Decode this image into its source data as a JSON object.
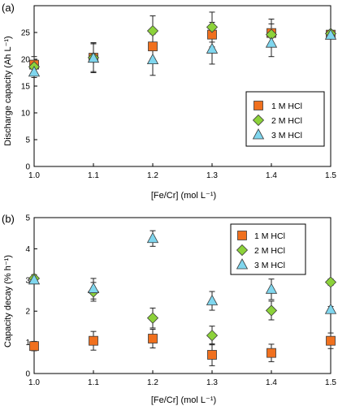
{
  "chart_data": [
    {
      "type": "scatter",
      "panel_label": "(a)",
      "xlabel": "[Fe/Cr] (mol L⁻¹)",
      "ylabel": "Discharge capacity (Ah L⁻¹)",
      "xlim": [
        1.0,
        1.5
      ],
      "ylim": [
        0,
        30
      ],
      "x_ticks": [
        "1.0",
        "1.1",
        "1.2",
        "1.3",
        "1.4",
        "1.5"
      ],
      "y_ticks": [
        "0",
        "5",
        "10",
        "15",
        "20",
        "25"
      ],
      "grid": false,
      "legend_position": "center-right",
      "series": [
        {
          "name": "1 M HCl",
          "marker": "square",
          "color": "#f0701e",
          "x": [
            1.0,
            1.1,
            1.2,
            1.3,
            1.4,
            1.5
          ],
          "y": [
            19.0,
            20.3,
            22.4,
            24.6,
            24.9,
            24.6
          ],
          "err": [
            1.5,
            2.8,
            2.3,
            2.3,
            2.6,
            0.6
          ]
        },
        {
          "name": "2 M HCl",
          "marker": "diamond",
          "color": "#8cd23a",
          "x": [
            1.0,
            1.1,
            1.2,
            1.3,
            1.4,
            1.5
          ],
          "y": [
            18.6,
            20.3,
            25.3,
            26.0,
            24.6,
            24.8
          ],
          "err": [
            1.2,
            2.6,
            2.8,
            2.8,
            2.0,
            0.5
          ]
        },
        {
          "name": "3 M HCl",
          "marker": "triangle",
          "color": "#7fd6ee",
          "x": [
            1.0,
            1.1,
            1.2,
            1.3,
            1.4,
            1.5
          ],
          "y": [
            17.6,
            20.2,
            19.9,
            21.9,
            23.0,
            24.5
          ],
          "err": [
            1.0,
            2.7,
            2.9,
            2.8,
            2.5,
            0.5
          ]
        }
      ]
    },
    {
      "type": "scatter",
      "panel_label": "(b)",
      "xlabel": "[Fe/Cr] (mol L⁻¹)",
      "ylabel": "Capacity decay (% h⁻¹)",
      "xlim": [
        1.0,
        1.5
      ],
      "ylim": [
        0,
        5
      ],
      "x_ticks": [
        "1.0",
        "1.1",
        "1.2",
        "1.3",
        "1.4",
        "1.5"
      ],
      "y_ticks": [
        "0",
        "1",
        "2",
        "3",
        "4",
        "5"
      ],
      "grid": false,
      "legend_position": "top-right",
      "series": [
        {
          "name": "1 M HCl",
          "marker": "square",
          "color": "#f0701e",
          "x": [
            1.0,
            1.1,
            1.2,
            1.3,
            1.4,
            1.5
          ],
          "y": [
            0.88,
            1.05,
            1.12,
            0.6,
            0.66,
            1.05
          ],
          "err": [
            0.15,
            0.3,
            0.3,
            0.35,
            0.28,
            0.25
          ]
        },
        {
          "name": "2 M HCl",
          "marker": "diamond",
          "color": "#8cd23a",
          "x": [
            1.0,
            1.1,
            1.2,
            1.3,
            1.4,
            1.5
          ],
          "y": [
            3.05,
            2.62,
            1.78,
            1.22,
            2.02,
            2.93
          ],
          "err": [
            0.12,
            0.3,
            0.32,
            0.3,
            0.3,
            0.1
          ]
        },
        {
          "name": "3 M HCl",
          "marker": "triangle",
          "color": "#7fd6ee",
          "x": [
            1.0,
            1.1,
            1.2,
            1.3,
            1.4,
            1.5
          ],
          "y": [
            3.0,
            2.72,
            4.33,
            2.33,
            2.7,
            2.05
          ],
          "err": [
            0.12,
            0.33,
            0.25,
            0.3,
            0.33,
            0.1
          ]
        }
      ]
    }
  ]
}
